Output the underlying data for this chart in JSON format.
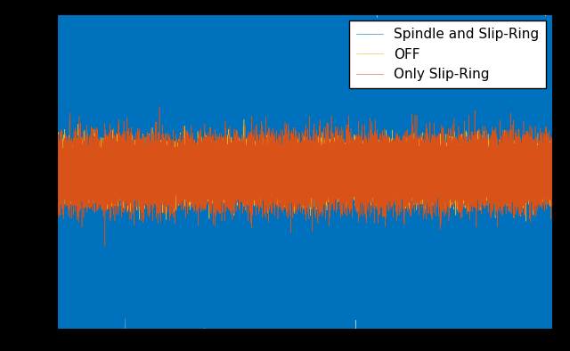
{
  "title": "",
  "xlabel": "",
  "ylabel": "",
  "legend_entries": [
    "Spindle and Slip-Ring",
    "Only Slip-Ring",
    "OFF"
  ],
  "colors": [
    "#0072BD",
    "#D95319",
    "#EDB120"
  ],
  "n_samples": 50000,
  "spindle_amplitude": 1.0,
  "slip_ring_amplitude": 0.15,
  "off_amplitude": 0.12,
  "xlim_low": 0,
  "xlim_high": 50000,
  "ylim_low": -1.55,
  "ylim_high": 1.55,
  "grid": true,
  "legend_fontsize": 11,
  "tick_fontsize": 10,
  "linewidth": 0.4,
  "figure_facecolor": "#000000",
  "axes_facecolor": "#FFFFFF"
}
